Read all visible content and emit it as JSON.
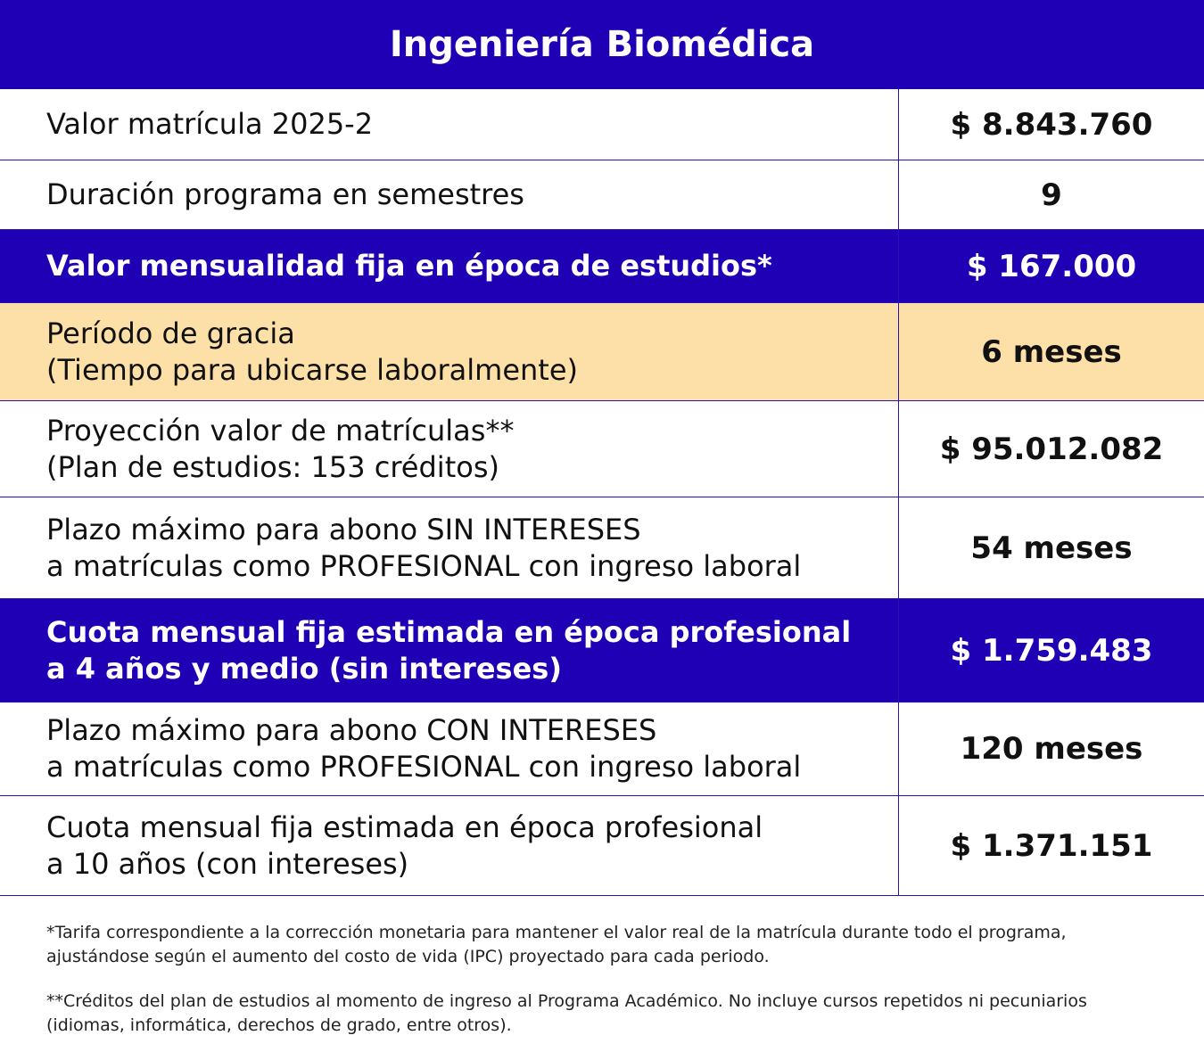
{
  "title": "Ingeniería Biomédica",
  "rows": [
    {
      "label": [
        "Valor matrícula 2025-2"
      ],
      "value": "$ 8.843.760",
      "style": "white"
    },
    {
      "label": [
        "Duración programa en semestres"
      ],
      "value": "9",
      "style": "white"
    },
    {
      "label": [
        "Valor mensualidad fija en época de estudios*"
      ],
      "value": "$ 167.000",
      "style": "blue"
    },
    {
      "label": [
        "Período de gracia",
        "(Tiempo para ubicarse laboralmente)"
      ],
      "value": "6 meses",
      "style": "beige"
    },
    {
      "label": [
        "Proyección valor de matrículas**",
        "(Plan de estudios: 153 créditos)"
      ],
      "value": "$ 95.012.082",
      "style": "white"
    },
    {
      "label": [
        "Plazo máximo para abono SIN INTERESES",
        "a matrículas como PROFESIONAL con ingreso laboral"
      ],
      "value": "54 meses",
      "style": "white"
    },
    {
      "label": [
        "Cuota mensual fija estimada en época profesional",
        "a 4 años y medio (sin intereses)"
      ],
      "value": "$ 1.759.483",
      "style": "blue"
    },
    {
      "label": [
        "Plazo máximo para abono CON INTERESES",
        "a matrículas como PROFESIONAL con ingreso laboral"
      ],
      "value": "120 meses",
      "style": "white"
    },
    {
      "label": [
        "Cuota mensual fija estimada en época profesional",
        "a 10 años (con intereses)"
      ],
      "value": "$ 1.371.151",
      "style": "white"
    }
  ],
  "footnotes": [
    [
      "*Tarifa correspondiente a la corrección monetaria para mantener el valor real de la matrícula durante todo el programa,",
      "ajustándose según el aumento del costo de vida (IPC) proyectado para cada periodo."
    ],
    [
      "**Créditos del plan de estudios al momento de ingreso al Programa Académico. No incluye cursos repetidos ni pecuniarios",
      "(idiomas, informática, derechos de grado, entre otros)."
    ]
  ]
}
